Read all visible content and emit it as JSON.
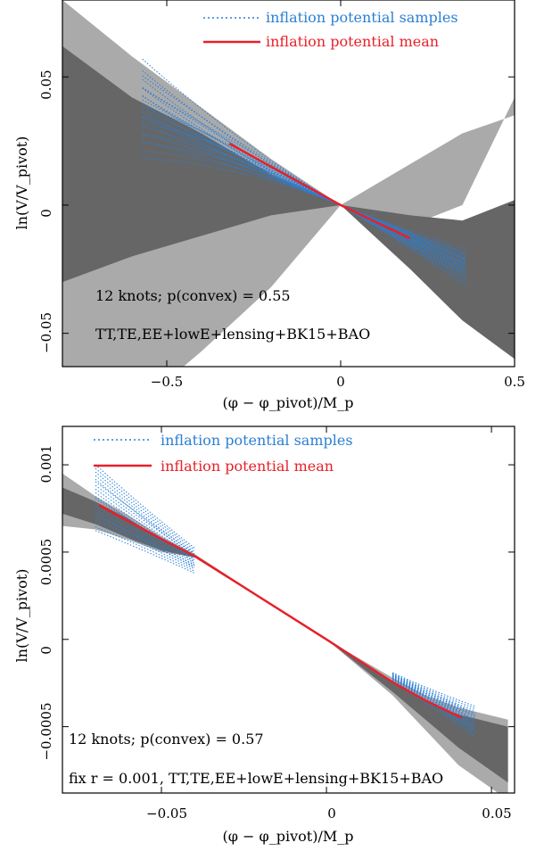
{
  "chart_data": [
    {
      "type": "line",
      "xlabel": "(φ − φ_pivot)/M_p",
      "ylabel": "ln(V/V_pivot)",
      "xlim": [
        -0.8,
        0.5
      ],
      "ylim": [
        -0.063,
        0.08
      ],
      "xticks": [
        -0.5,
        0,
        0.5
      ],
      "xtick_labels": [
        "−0.5",
        "0",
        "0.5"
      ],
      "yticks": [
        -0.05,
        0,
        0.05
      ],
      "ytick_labels": [
        "−0.05",
        "0",
        "0.05"
      ],
      "legend": {
        "position": "top-right",
        "entries": [
          "inflation potential samples",
          "inflation potential mean"
        ]
      },
      "annotations": [
        "12 knots; p(convex) = 0.55",
        "TT,TE,EE+lowE+lensing+BK15+BAO"
      ],
      "band_x": [
        -0.8,
        -0.6,
        -0.4,
        -0.2,
        0,
        0.2,
        0.35,
        0.5
      ],
      "outer_band_upper": [
        0.08,
        0.058,
        0.038,
        0.018,
        0.0,
        -0.008,
        0.0,
        0.042
      ],
      "outer_band_lower": [
        -0.1,
        -0.08,
        -0.057,
        -0.032,
        0.0,
        0.016,
        0.028,
        0.035
      ],
      "inner_band_upper": [
        0.062,
        0.042,
        0.028,
        0.012,
        0.0,
        -0.004,
        -0.006,
        0.002
      ],
      "inner_band_lower": [
        -0.03,
        -0.02,
        -0.012,
        -0.004,
        0.0,
        -0.025,
        -0.045,
        -0.06
      ],
      "mean_x": [
        -0.32,
        -0.2,
        -0.1,
        0.0,
        0.1,
        0.2
      ],
      "mean_y": [
        0.024,
        0.015,
        0.0075,
        0.0,
        -0.0065,
        -0.013
      ],
      "samples_x_range": [
        -0.57,
        0.36
      ],
      "samples_slopes": [
        -0.08,
        -0.072,
        -0.066,
        -0.06,
        -0.055
      ],
      "samples_curvatures": [
        -0.04,
        -0.02,
        0.0,
        0.015,
        0.035
      ]
    },
    {
      "type": "line",
      "xlabel": "(φ − φ_pivot)/M_p",
      "ylabel": "ln(V/V_pivot)",
      "xlim": [
        -0.08,
        0.057
      ],
      "ylim": [
        -0.00088,
        0.00122
      ],
      "xticks": [
        -0.05,
        0,
        0.05
      ],
      "xtick_labels": [
        "−0.05",
        "0",
        "0.05"
      ],
      "yticks": [
        -0.0005,
        0,
        0.0005,
        0.001
      ],
      "ytick_labels": [
        "−0.0005",
        "0",
        "0.0005",
        "0.001"
      ],
      "legend": {
        "position": "top-left",
        "entries": [
          "inflation potential samples",
          "inflation potential mean"
        ]
      },
      "annotations": [
        "12 knots; p(convex) = 0.57",
        "fix r = 0.001, TT,TE,EE+lowE+lensing+BK15+BAO"
      ],
      "band_x": [
        -0.08,
        -0.07,
        -0.06,
        -0.05,
        -0.04,
        0.0,
        0.02,
        0.03,
        0.04,
        0.055
      ],
      "outer_band_upper": [
        0.00095,
        0.00082,
        0.00071,
        0.00059,
        0.00049,
        0.0,
        -0.00022,
        -0.00032,
        -0.00039,
        -0.00046
      ],
      "outer_band_lower": [
        0.00065,
        0.00063,
        0.00057,
        0.0005,
        0.00047,
        0.0,
        -0.00032,
        -0.00052,
        -0.00072,
        -0.00092
      ],
      "inner_band_upper": [
        0.00087,
        0.00079,
        0.00069,
        0.00057,
        0.00048,
        0.0,
        -0.00024,
        -0.00035,
        -0.00043,
        -0.0005
      ],
      "inner_band_lower": [
        0.00072,
        0.00066,
        0.00058,
        0.00051,
        0.00047,
        0.0,
        -0.0003,
        -0.00046,
        -0.00062,
        -0.00082
      ],
      "mean_x": [
        -0.069,
        -0.05,
        -0.04,
        0.0,
        0.02,
        0.03,
        0.041
      ],
      "mean_y": [
        0.00077,
        0.000575,
        0.000478,
        0.0,
        -0.000245,
        -0.00035,
        -0.00045
      ],
      "samples_x_range_left": [
        -0.07,
        -0.04
      ],
      "samples_x_range_right": [
        0.02,
        0.045
      ]
    }
  ]
}
